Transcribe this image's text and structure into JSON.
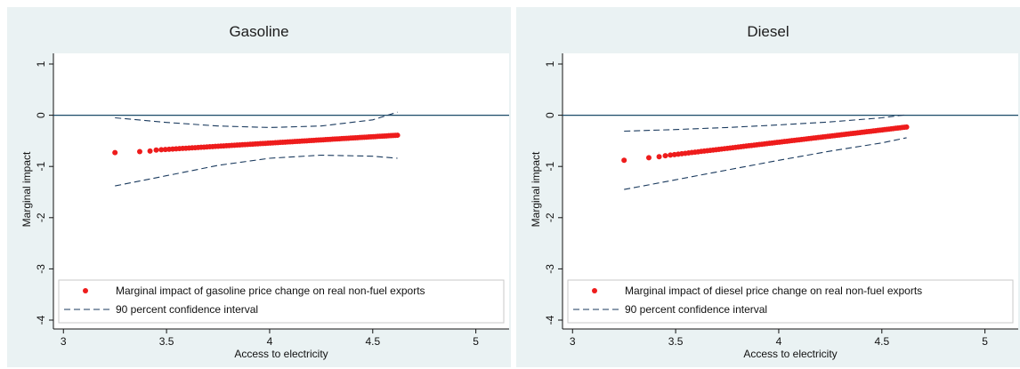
{
  "chart_data": [
    {
      "type": "scatter",
      "title": "Gasoline",
      "xlabel": "Access to electricity",
      "ylabel": "Marginal impact",
      "xlim": [
        3,
        5
      ],
      "ylim": [
        -4,
        1
      ],
      "xticks": [
        3,
        3.5,
        4,
        4.5,
        5
      ],
      "xtick_labels": [
        "3",
        "3.5",
        "4",
        "4.5",
        "5"
      ],
      "yticks": [
        1,
        0,
        -1,
        -2,
        -3,
        -4
      ],
      "ytick_labels": [
        "1",
        "0",
        "-1",
        "-2",
        "-3",
        "-4"
      ],
      "reference_line_y": 0,
      "grid": false,
      "legend_position": "bottom",
      "legend": [
        "Marginal impact of gasoline price change on real non-fuel exports",
        "90 percent confidence interval"
      ],
      "series": [
        {
          "name": "Marginal impact of gasoline price change on real non-fuel exports",
          "kind": "points",
          "x_start": 3.45,
          "x_end": 4.62,
          "y_start": -0.68,
          "y_end": -0.39,
          "extra_points": [
            {
              "x": 3.25,
              "y": -0.73
            },
            {
              "x": 3.37,
              "y": -0.71
            },
            {
              "x": 3.42,
              "y": -0.7
            }
          ]
        },
        {
          "name": "90 percent confidence interval (upper)",
          "kind": "dashed",
          "x": [
            3.25,
            3.5,
            3.75,
            4.0,
            4.25,
            4.5,
            4.62
          ],
          "y": [
            -0.05,
            -0.14,
            -0.21,
            -0.24,
            -0.21,
            -0.09,
            0.06
          ]
        },
        {
          "name": "90 percent confidence interval (lower)",
          "kind": "dashed",
          "x": [
            3.25,
            3.5,
            3.75,
            4.0,
            4.25,
            4.5,
            4.62
          ],
          "y": [
            -1.38,
            -1.18,
            -0.98,
            -0.84,
            -0.78,
            -0.8,
            -0.84
          ]
        }
      ]
    },
    {
      "type": "scatter",
      "title": "Diesel",
      "xlabel": "Access to electricity",
      "ylabel": "Marginal impact",
      "xlim": [
        3,
        5
      ],
      "ylim": [
        -4,
        1
      ],
      "xticks": [
        3,
        3.5,
        4,
        4.5,
        5
      ],
      "xtick_labels": [
        "3",
        "3.5",
        "4",
        "4.5",
        "5"
      ],
      "yticks": [
        1,
        0,
        -1,
        -2,
        -3,
        -4
      ],
      "ytick_labels": [
        "1",
        "0",
        "-1",
        "-2",
        "-3",
        "-4"
      ],
      "reference_line_y": 0,
      "grid": false,
      "legend_position": "bottom",
      "legend": [
        "Marginal impact of diesel price change on real non-fuel exports",
        "90 percent confidence interval"
      ],
      "series": [
        {
          "name": "Marginal impact of diesel price change on real non-fuel exports",
          "kind": "points",
          "x_start": 3.45,
          "x_end": 4.62,
          "y_start": -0.79,
          "y_end": -0.23,
          "extra_points": [
            {
              "x": 3.25,
              "y": -0.88
            },
            {
              "x": 3.37,
              "y": -0.83
            },
            {
              "x": 3.42,
              "y": -0.81
            }
          ]
        },
        {
          "name": "90 percent confidence interval (upper)",
          "kind": "dashed",
          "x": [
            3.25,
            3.5,
            3.75,
            4.0,
            4.25,
            4.5,
            4.62
          ],
          "y": [
            -0.31,
            -0.28,
            -0.24,
            -0.19,
            -0.13,
            -0.05,
            0.01
          ]
        },
        {
          "name": "90 percent confidence interval (lower)",
          "kind": "dashed",
          "x": [
            3.25,
            3.5,
            3.75,
            4.0,
            4.25,
            4.5,
            4.62
          ],
          "y": [
            -1.45,
            -1.26,
            -1.07,
            -0.88,
            -0.7,
            -0.54,
            -0.44
          ]
        }
      ]
    }
  ],
  "colors": {
    "points": "#ee1c1c",
    "ci": "#1a3a5e",
    "zero_line": "#1a4a68",
    "panel_bg": "#eaf2f3",
    "plot_bg": "#ffffff"
  }
}
